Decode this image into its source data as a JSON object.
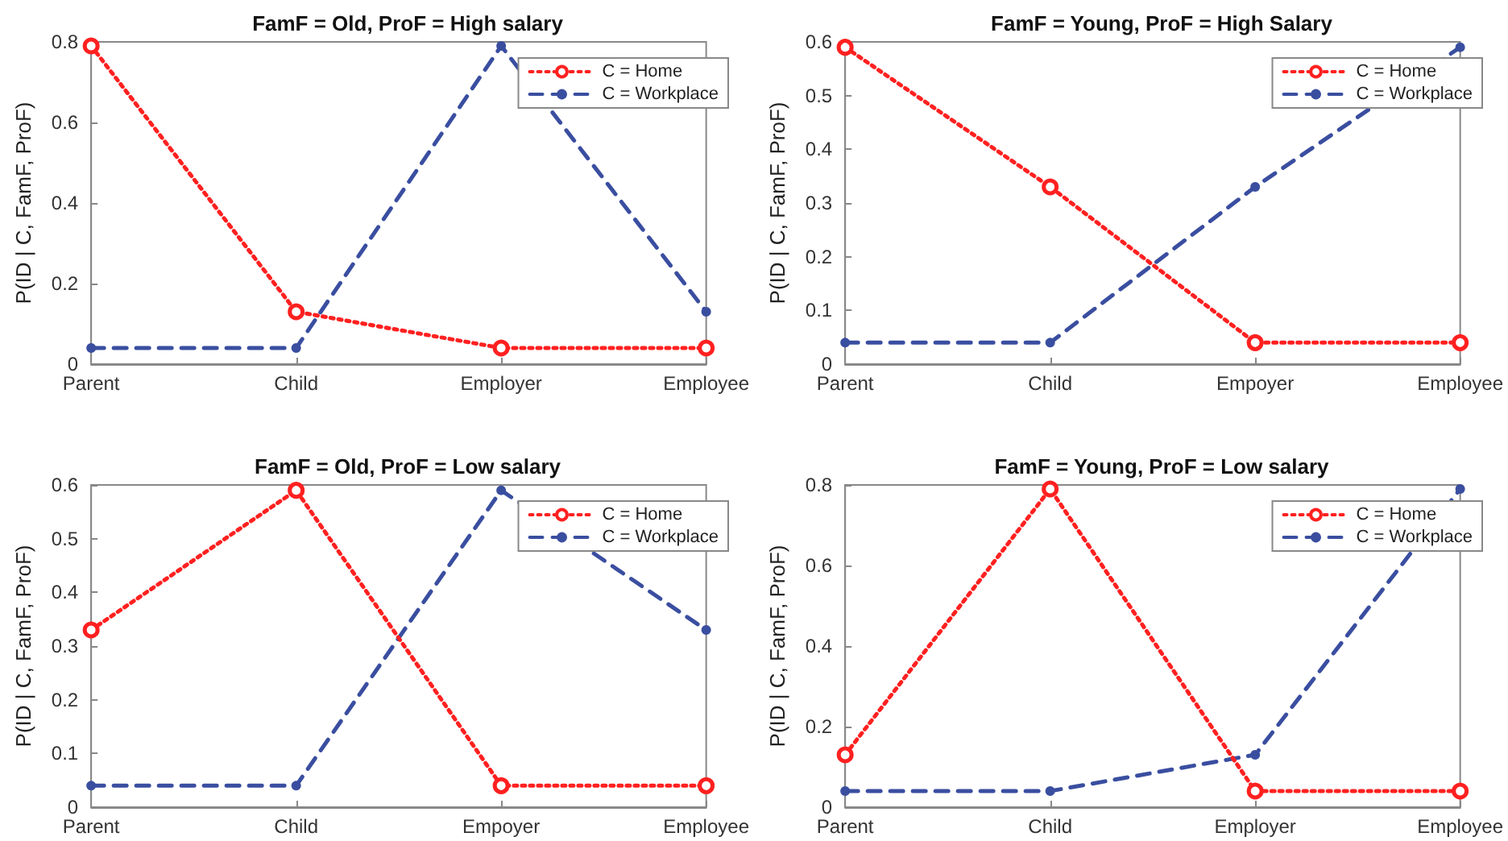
{
  "chart_data": [
    {
      "type": "line",
      "title": "FamF = Old, ProF = High salary",
      "ylabel": "P(ID | C, FamF, ProF)",
      "categories": [
        "Parent",
        "Child",
        "Employer",
        "Employee"
      ],
      "series": [
        {
          "name": "C = Home",
          "color": "#ff2020",
          "values": [
            0.79,
            0.13,
            0.04,
            0.04
          ],
          "line_style": "dotted",
          "marker": "circle"
        },
        {
          "name": "C = Workplace",
          "color": "#3a4ea0",
          "values": [
            0.04,
            0.04,
            0.79,
            0.13
          ],
          "line_style": "dashed",
          "marker": "circle"
        }
      ],
      "ylim": [
        0,
        0.8
      ],
      "yticks": [
        0,
        0.2,
        0.4,
        0.6,
        0.8
      ],
      "legend": "top right",
      "grid": false
    },
    {
      "type": "line",
      "title": "FamF = Young, ProF = High Salary",
      "ylabel": "P(ID | C, FamF, ProF)",
      "categories": [
        "Parent",
        "Child",
        "Empoyer",
        "Employee"
      ],
      "series": [
        {
          "name": "C = Home",
          "color": "#ff2020",
          "values": [
            0.59,
            0.33,
            0.04,
            0.04
          ],
          "line_style": "dotted",
          "marker": "circle"
        },
        {
          "name": "C = Workplace",
          "color": "#3a4ea0",
          "values": [
            0.04,
            0.04,
            0.33,
            0.59
          ],
          "line_style": "dashed",
          "marker": "circle"
        }
      ],
      "ylim": [
        0,
        0.6
      ],
      "yticks": [
        0,
        0.1,
        0.2,
        0.3,
        0.4,
        0.5,
        0.6
      ],
      "legend": "top right",
      "grid": false
    },
    {
      "type": "line",
      "title": "FamF = Old, ProF = Low salary",
      "ylabel": "P(ID | C, FamF, ProF)",
      "categories": [
        "Parent",
        "Child",
        "Empoyer",
        "Employee"
      ],
      "series": [
        {
          "name": "C = Home",
          "color": "#ff2020",
          "values": [
            0.33,
            0.59,
            0.04,
            0.04
          ],
          "line_style": "dotted",
          "marker": "circle"
        },
        {
          "name": "C = Workplace",
          "color": "#3a4ea0",
          "values": [
            0.04,
            0.04,
            0.59,
            0.33
          ],
          "line_style": "dashed",
          "marker": "circle"
        }
      ],
      "ylim": [
        0,
        0.6
      ],
      "yticks": [
        0,
        0.1,
        0.2,
        0.3,
        0.4,
        0.5,
        0.6
      ],
      "legend": "top right",
      "grid": false
    },
    {
      "type": "line",
      "title": "FamF = Young, ProF = Low salary",
      "ylabel": "P(ID | C, FamF, ProF)",
      "categories": [
        "Parent",
        "Child",
        "Employer",
        "Employee"
      ],
      "series": [
        {
          "name": "C = Home",
          "color": "#ff2020",
          "values": [
            0.13,
            0.79,
            0.04,
            0.04
          ],
          "line_style": "dotted",
          "marker": "circle"
        },
        {
          "name": "C = Workplace",
          "color": "#3a4ea0",
          "values": [
            0.04,
            0.04,
            0.13,
            0.79
          ],
          "line_style": "dashed",
          "marker": "circle"
        }
      ],
      "ylim": [
        0,
        0.8
      ],
      "yticks": [
        0,
        0.2,
        0.4,
        0.6,
        0.8
      ],
      "legend": "top right",
      "grid": false
    }
  ]
}
